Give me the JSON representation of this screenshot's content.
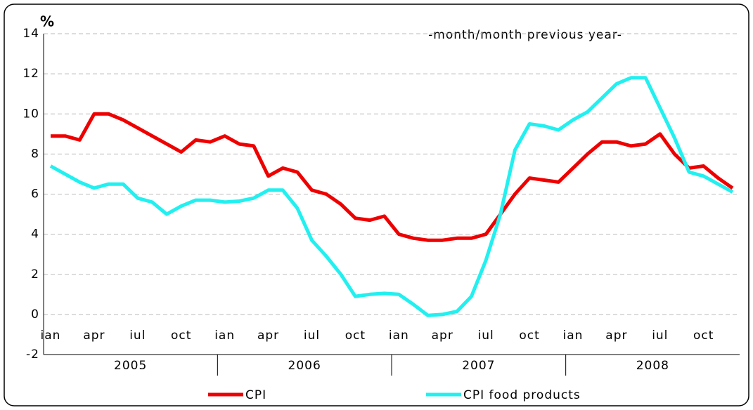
{
  "chart_data": {
    "type": "line",
    "y_unit": "%",
    "annotation": "-month/month previous year-",
    "categories": [
      "ian",
      null,
      null,
      "apr",
      null,
      null,
      "iul",
      null,
      null,
      "oct",
      null,
      null,
      "ian",
      null,
      null,
      "apr",
      null,
      null,
      "iul",
      null,
      null,
      "oct",
      null,
      null,
      "ian",
      null,
      null,
      "apr",
      null,
      null,
      "iul",
      null,
      null,
      "oct",
      null,
      null,
      "ian",
      null,
      null,
      "apr",
      null,
      null,
      "iul",
      null,
      null,
      "oct",
      null,
      null
    ],
    "years": [
      "2005",
      "2006",
      "2007",
      "2008"
    ],
    "series": [
      {
        "name": "CPI",
        "color": "#ee0000",
        "values": [
          8.9,
          8.9,
          8.7,
          10.0,
          10.0,
          9.7,
          9.3,
          8.9,
          8.5,
          8.1,
          8.7,
          8.6,
          8.9,
          8.5,
          8.4,
          6.9,
          7.3,
          7.1,
          6.2,
          6.0,
          5.5,
          4.8,
          4.7,
          4.9,
          4.0,
          3.8,
          3.7,
          3.7,
          3.8,
          3.8,
          4.0,
          5.0,
          6.0,
          6.8,
          6.7,
          6.6,
          7.3,
          8.0,
          8.6,
          8.6,
          8.4,
          8.5,
          9.0,
          8.0,
          7.3,
          7.4,
          6.8,
          6.3
        ]
      },
      {
        "name": "CPI food products",
        "color": "#22f0f0",
        "values": [
          7.4,
          7.0,
          6.6,
          6.3,
          6.5,
          6.5,
          5.8,
          5.6,
          5.0,
          5.4,
          5.7,
          5.7,
          5.6,
          5.65,
          5.8,
          6.2,
          6.2,
          5.3,
          3.7,
          2.9,
          2.0,
          0.9,
          1.0,
          1.05,
          1.0,
          0.5,
          -0.05,
          0.0,
          0.15,
          0.9,
          2.7,
          5.0,
          8.2,
          9.5,
          9.4,
          9.2,
          9.7,
          10.1,
          10.8,
          11.5,
          11.8,
          11.8,
          10.3,
          8.8,
          7.1,
          6.9,
          6.5,
          6.1
        ]
      }
    ],
    "ylim": [
      -2,
      14
    ],
    "yticks": [
      -2,
      0,
      2,
      4,
      6,
      8,
      10,
      12,
      14
    ],
    "grid": true,
    "legend": "bottom"
  }
}
